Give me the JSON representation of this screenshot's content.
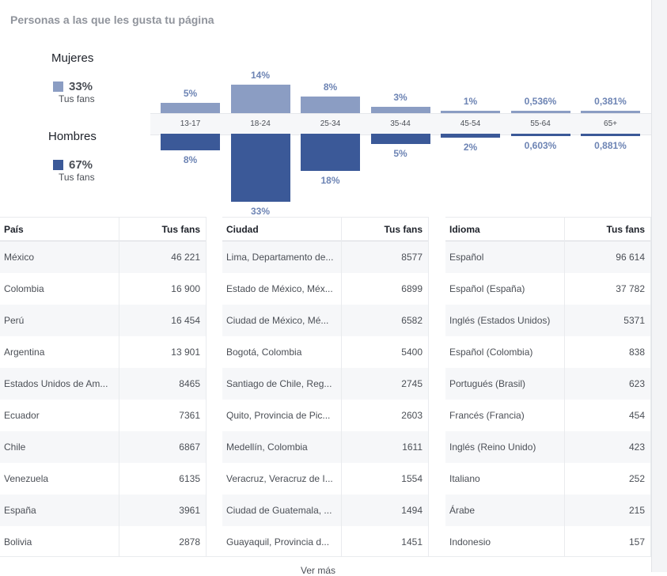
{
  "section_title": "Personas a las que les gusta tu página",
  "legend": {
    "women": {
      "label": "Mujeres",
      "pct": "33%",
      "sub": "Tus fans",
      "color": "#8b9dc3"
    },
    "men": {
      "label": "Hombres",
      "pct": "67%",
      "sub": "Tus fans",
      "color": "#3b5998"
    }
  },
  "chart_data": {
    "type": "bar",
    "categories": [
      "13-17",
      "18-24",
      "25-34",
      "35-44",
      "45-54",
      "55-64",
      "65+"
    ],
    "series": [
      {
        "name": "Mujeres",
        "values": [
          5,
          14,
          8,
          3,
          1,
          0.536,
          0.381
        ],
        "labels": [
          "5%",
          "14%",
          "8%",
          "3%",
          "1%",
          "0,536%",
          "0,381%"
        ],
        "color": "#8b9dc3"
      },
      {
        "name": "Hombres",
        "values": [
          8,
          33,
          18,
          5,
          2,
          0.603,
          0.881
        ],
        "labels": [
          "8%",
          "33%",
          "18%",
          "5%",
          "2%",
          "0,603%",
          "0,881%"
        ],
        "color": "#3b5998"
      }
    ]
  },
  "tables": {
    "country": {
      "headers": [
        "País",
        "Tus fans"
      ],
      "rows": [
        [
          "México",
          "46 221"
        ],
        [
          "Colombia",
          "16 900"
        ],
        [
          "Perú",
          "16 454"
        ],
        [
          "Argentina",
          "13 901"
        ],
        [
          "Estados Unidos de Am...",
          "8465"
        ],
        [
          "Ecuador",
          "7361"
        ],
        [
          "Chile",
          "6867"
        ],
        [
          "Venezuela",
          "6135"
        ],
        [
          "España",
          "3961"
        ],
        [
          "Bolivia",
          "2878"
        ]
      ]
    },
    "city": {
      "headers": [
        "Ciudad",
        "Tus fans"
      ],
      "rows": [
        [
          "Lima, Departamento de...",
          "8577"
        ],
        [
          "Estado de México, Méx...",
          "6899"
        ],
        [
          "Ciudad de México, Mé...",
          "6582"
        ],
        [
          "Bogotá, Colombia",
          "5400"
        ],
        [
          "Santiago de Chile, Reg...",
          "2745"
        ],
        [
          "Quito, Provincia de Pic...",
          "2603"
        ],
        [
          "Medellín, Colombia",
          "1611"
        ],
        [
          "Veracruz, Veracruz de I...",
          "1554"
        ],
        [
          "Ciudad de Guatemala, ...",
          "1494"
        ],
        [
          "Guayaquil, Provincia d...",
          "1451"
        ]
      ]
    },
    "language": {
      "headers": [
        "Idioma",
        "Tus fans"
      ],
      "rows": [
        [
          "Español",
          "96 614"
        ],
        [
          "Español (España)",
          "37 782"
        ],
        [
          "Inglés (Estados Unidos)",
          "5371"
        ],
        [
          "Español (Colombia)",
          "838"
        ],
        [
          "Portugués (Brasil)",
          "623"
        ],
        [
          "Francés (Francia)",
          "454"
        ],
        [
          "Inglés (Reino Unido)",
          "423"
        ],
        [
          "Italiano",
          "252"
        ],
        [
          "Árabe",
          "215"
        ],
        [
          "Indonesio",
          "157"
        ]
      ]
    }
  },
  "see_more": "Ver más"
}
